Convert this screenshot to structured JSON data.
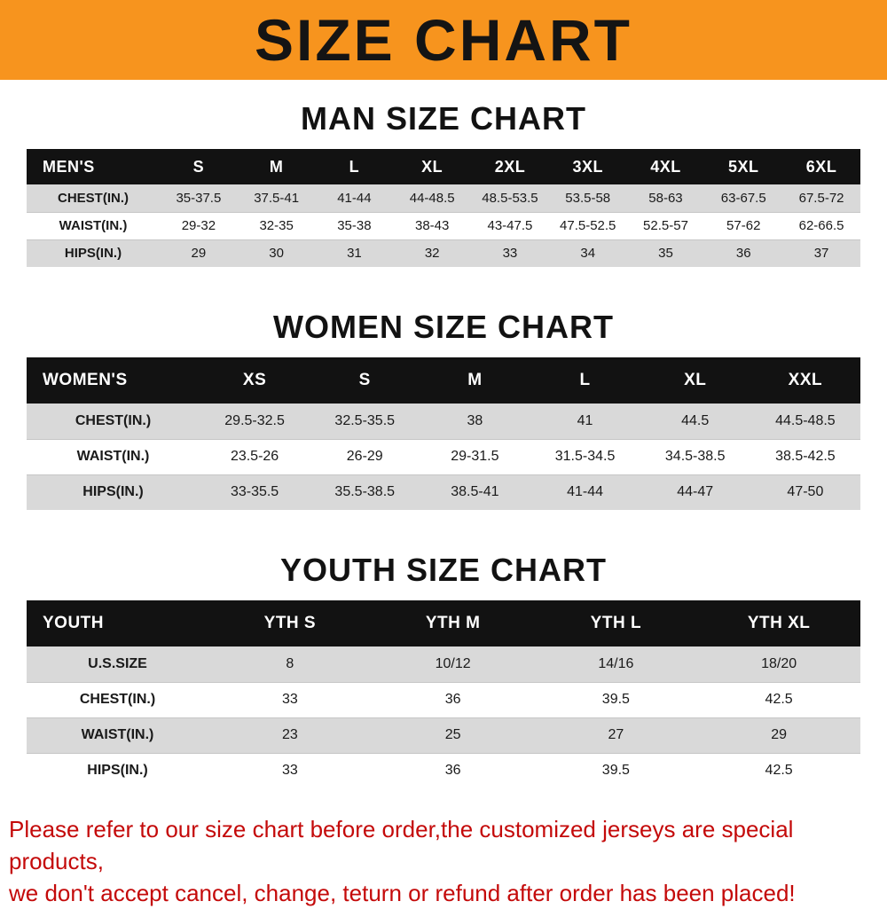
{
  "banner": {
    "title": "SIZE CHART",
    "background_color": "#F7941E",
    "text_color": "#141414"
  },
  "chart_data": [
    {
      "type": "table",
      "title": "MAN SIZE CHART",
      "columns": [
        "MEN'S",
        "S",
        "M",
        "L",
        "XL",
        "2XL",
        "3XL",
        "4XL",
        "5XL",
        "6XL"
      ],
      "rows": [
        [
          "CHEST(IN.)",
          "35-37.5",
          "37.5-41",
          "41-44",
          "44-48.5",
          "48.5-53.5",
          "53.5-58",
          "58-63",
          "63-67.5",
          "67.5-72"
        ],
        [
          "WAIST(IN.)",
          "29-32",
          "32-35",
          "35-38",
          "38-43",
          "43-47.5",
          "47.5-52.5",
          "52.5-57",
          "57-62",
          "62-66.5"
        ],
        [
          "HIPS(IN.)",
          "29",
          "30",
          "31",
          "32",
          "33",
          "34",
          "35",
          "36",
          "37"
        ]
      ]
    },
    {
      "type": "table",
      "title": "WOMEN SIZE CHART",
      "columns": [
        "WOMEN'S",
        "XS",
        "S",
        "M",
        "L",
        "XL",
        "XXL"
      ],
      "rows": [
        [
          "CHEST(IN.)",
          "29.5-32.5",
          "32.5-35.5",
          "38",
          "41",
          "44.5",
          "44.5-48.5"
        ],
        [
          "WAIST(IN.)",
          "23.5-26",
          "26-29",
          "29-31.5",
          "31.5-34.5",
          "34.5-38.5",
          "38.5-42.5"
        ],
        [
          "HIPS(IN.)",
          "33-35.5",
          "35.5-38.5",
          "38.5-41",
          "41-44",
          "44-47",
          "47-50"
        ]
      ]
    },
    {
      "type": "table",
      "title": "YOUTH SIZE CHART",
      "columns": [
        "YOUTH",
        "YTH S",
        "YTH M",
        "YTH L",
        "YTH XL"
      ],
      "rows": [
        [
          "U.S.SIZE",
          "8",
          "10/12",
          "14/16",
          "18/20"
        ],
        [
          "CHEST(IN.)",
          "33",
          "36",
          "39.5",
          "42.5"
        ],
        [
          "WAIST(IN.)",
          "23",
          "25",
          "27",
          "29"
        ],
        [
          "HIPS(IN.)",
          "33",
          "36",
          "39.5",
          "42.5"
        ]
      ]
    }
  ],
  "footer": {
    "line1": "Please refer to our size chart before order,the customized jerseys are special products,",
    "line2": "we don't accept cancel, change, teturn or refund after order has been placed!",
    "text_color": "#c40a0a"
  }
}
